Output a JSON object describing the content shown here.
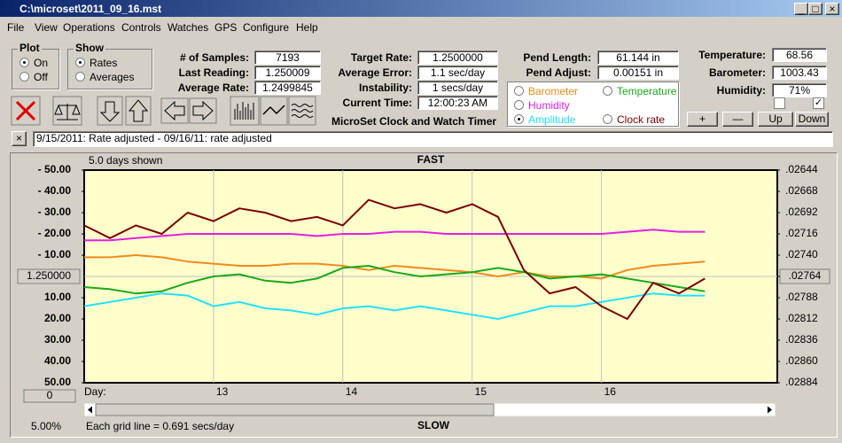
{
  "window": {
    "title": "C:\\microset\\2011_09_16.mst"
  },
  "menu": [
    "File",
    "View",
    "Operations",
    "Controls",
    "Watches",
    "GPS",
    "Configure",
    "Help"
  ],
  "plot_group": {
    "title": "Plot",
    "options": [
      "On",
      "Off"
    ],
    "selected": 0
  },
  "show_group": {
    "title": "Show",
    "options": [
      "Rates",
      "Averages"
    ],
    "selected": 0
  },
  "fields": [
    {
      "label": "# of Samples:",
      "value": "7193"
    },
    {
      "label": "Last Reading:",
      "value": "1.250009"
    },
    {
      "label": "Average Rate:",
      "value": "1.2499845"
    }
  ],
  "rate_fields": [
    {
      "label": "Target Rate:",
      "value": "1.2500000"
    },
    {
      "label": "Average Error:",
      "value": "1.1 sec/day"
    },
    {
      "label": "Instability:",
      "value": "1 secs/day"
    },
    {
      "label": "Current Time:",
      "value": "12:00:23 AM"
    }
  ],
  "pend_fields": [
    {
      "label": "Pend Length:",
      "value": "61.144 in"
    },
    {
      "label": "Pend Adjust:",
      "value": "0.00151 in"
    }
  ],
  "env_fields": [
    {
      "label": "Temperature:",
      "value": "68.56"
    },
    {
      "label": "Barometer:",
      "value": "1003.43"
    },
    {
      "label": "Humidity:",
      "value": "71%"
    }
  ],
  "buttons": [
    "+",
    "—",
    "Up",
    "Down"
  ],
  "caption": "MicroSet Clock and Watch Timer",
  "notes": "9/15/2011: Rate adjusted  -  09/16/11: rate adjusted",
  "chart_data": {
    "type": "line",
    "subtitle": "5.0 days shown",
    "top_label": "FAST",
    "bottom_label": "SLOW",
    "x_label": "Day:",
    "footer": "Each grid line = 0.691 secs/day",
    "scale": "5.00%",
    "offset": "0",
    "selected_series": 3,
    "xlim": [
      12,
      17.36
    ],
    "xticks": [
      13,
      14,
      15,
      16
    ],
    "ylim": [
      -50,
      50
    ],
    "yticks": [
      {
        "value": 50,
        "label": "-  50.00"
      },
      {
        "value": 40,
        "label": "-  40.00"
      },
      {
        "value": 30,
        "label": "-  30.00"
      },
      {
        "value": 20,
        "label": "-  20.00"
      },
      {
        "value": 10,
        "label": "-  10.00"
      },
      {
        "value": 0,
        "label": "1.250000"
      },
      {
        "value": -10,
        "label": "10.00"
      },
      {
        "value": -20,
        "label": "20.00"
      },
      {
        "value": -30,
        "label": "30.00"
      },
      {
        "value": -40,
        "label": "40.00"
      },
      {
        "value": -50,
        "label": "50.00"
      }
    ],
    "y2lim": [
      -50,
      50
    ],
    "y2ticks": [
      {
        "value": 50,
        "label": ".02644"
      },
      {
        "value": 40,
        "label": ".02668"
      },
      {
        "value": 30,
        "label": ".02692"
      },
      {
        "value": 20,
        "label": ".02716"
      },
      {
        "value": 10,
        "label": ".02740"
      },
      {
        "value": 0,
        "label": ".02764"
      },
      {
        "value": -10,
        "label": ".02788"
      },
      {
        "value": -20,
        "label": ".02812"
      },
      {
        "value": -30,
        "label": ".02836"
      },
      {
        "value": -40,
        "label": ".02860"
      },
      {
        "value": -50,
        "label": ".02884"
      }
    ],
    "x": [
      12.0,
      12.2,
      12.4,
      12.6,
      12.8,
      13.0,
      13.2,
      13.4,
      13.6,
      13.8,
      14.0,
      14.2,
      14.4,
      14.6,
      14.8,
      15.0,
      15.2,
      15.4,
      15.6,
      15.8,
      16.0,
      16.2,
      16.4,
      16.6,
      16.8
    ],
    "series": [
      {
        "name": "Barometer",
        "color": "#f08a1c",
        "values": [
          9,
          9,
          10,
          9,
          7,
          6,
          5,
          5,
          6,
          6,
          5,
          3,
          5,
          4,
          3,
          2,
          0,
          2,
          0,
          0,
          -1,
          3,
          5,
          6,
          7
        ]
      },
      {
        "name": "Temperature",
        "color": "#1aa81a",
        "values": [
          -5,
          -6,
          -8,
          -7,
          -3,
          0,
          1,
          -2,
          -3,
          -1,
          4,
          5,
          2,
          0,
          1,
          2,
          4,
          2,
          -1,
          0,
          1,
          -1,
          -3,
          -5,
          -7
        ]
      },
      {
        "name": "Humidity",
        "color": "#e020e0",
        "values": [
          17,
          17,
          18,
          19,
          20,
          20,
          20,
          20,
          20,
          19,
          20,
          20,
          21,
          21,
          20,
          20,
          20,
          20,
          20,
          20,
          20,
          21,
          22,
          21,
          21
        ]
      },
      {
        "name": "Amplitude",
        "color": "#20e0ff",
        "values": [
          -14,
          -12,
          -10,
          -8,
          -9,
          -14,
          -12,
          -15,
          -16,
          -18,
          -15,
          -14,
          -16,
          -14,
          -16,
          -18,
          -20,
          -17,
          -14,
          -14,
          -12,
          -10,
          -8,
          -9,
          -9
        ]
      },
      {
        "name": "Clock rate",
        "color": "#7a0000",
        "values": [
          24,
          18,
          24,
          20,
          30,
          26,
          32,
          30,
          26,
          28,
          24,
          36,
          32,
          34,
          30,
          34,
          28,
          3,
          -8,
          -5,
          -14,
          -20,
          -3,
          -8,
          -1
        ]
      }
    ]
  }
}
